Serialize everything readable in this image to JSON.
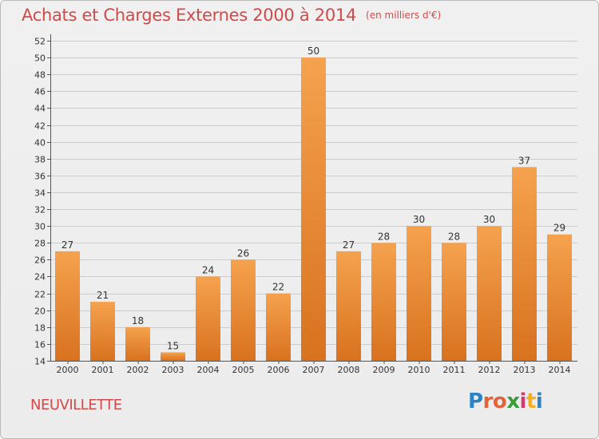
{
  "header": {
    "title": "Achats et Charges Externes 2000 à 2014",
    "unit": "(en milliers d'€)"
  },
  "footer": {
    "place": "NEUVILLETTE",
    "logo_text": "Proxiti",
    "logo_colors": [
      "#2b83c6",
      "#e0633b",
      "#e0633b",
      "#3a9d3a",
      "#d23b6d",
      "#f2b01e",
      "#2b83c6"
    ]
  },
  "colors": {
    "bar_top": "#f5a24e",
    "bar_bottom": "#d8721f",
    "text_red": "#d04a4a",
    "grid": "#cccccc"
  },
  "chart_data": {
    "type": "bar",
    "title": "Achats et Charges Externes 2000 à 2014",
    "subtitle": "(en milliers d'€)",
    "categories": [
      "2000",
      "2001",
      "2002",
      "2003",
      "2004",
      "2005",
      "2006",
      "2007",
      "2008",
      "2009",
      "2010",
      "2011",
      "2012",
      "2013",
      "2014"
    ],
    "values": [
      27,
      21,
      18,
      15,
      24,
      26,
      22,
      50,
      27,
      28,
      30,
      28,
      30,
      37,
      29
    ],
    "ylim": [
      14,
      52
    ],
    "yticks": [
      14,
      16,
      18,
      20,
      22,
      24,
      26,
      28,
      30,
      32,
      34,
      36,
      38,
      40,
      42,
      44,
      46,
      48,
      50,
      52
    ],
    "grid": true,
    "xlabel": "",
    "ylabel": ""
  }
}
